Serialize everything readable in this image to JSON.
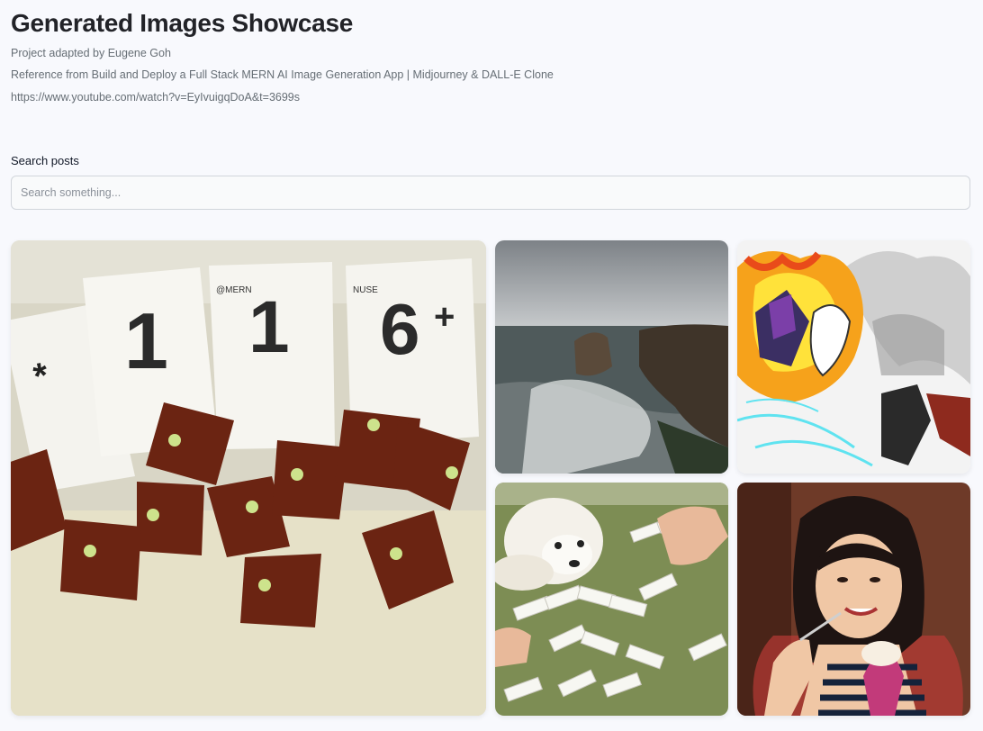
{
  "header": {
    "title": "Generated Images Showcase",
    "credit": "Project adapted by Eugene Goh",
    "reference": "Reference from Build and Deploy a Full Stack MERN AI Image Generation App | Midjourney & DALL-E Clone",
    "link": "https://www.youtube.com/watch?v=EyIvuigqDoA&t=3699s"
  },
  "search": {
    "label": "Search posts",
    "placeholder": "Search something...",
    "value": ""
  },
  "gallery": {
    "cards": [
      {
        "icon": "cards-and-tiles-image"
      },
      {
        "icon": "rocky-coast-image"
      },
      {
        "icon": "fiery-battle-sketch-image"
      },
      {
        "icon": "dog-playing-mahjong-image"
      },
      {
        "icon": "woman-eating-ice-cream-image"
      }
    ],
    "card_text": {
      "c1": [
        "1",
        "1",
        "6",
        "+"
      ],
      "c1_marks": [
        "@MERN",
        "NUSE"
      ]
    }
  }
}
